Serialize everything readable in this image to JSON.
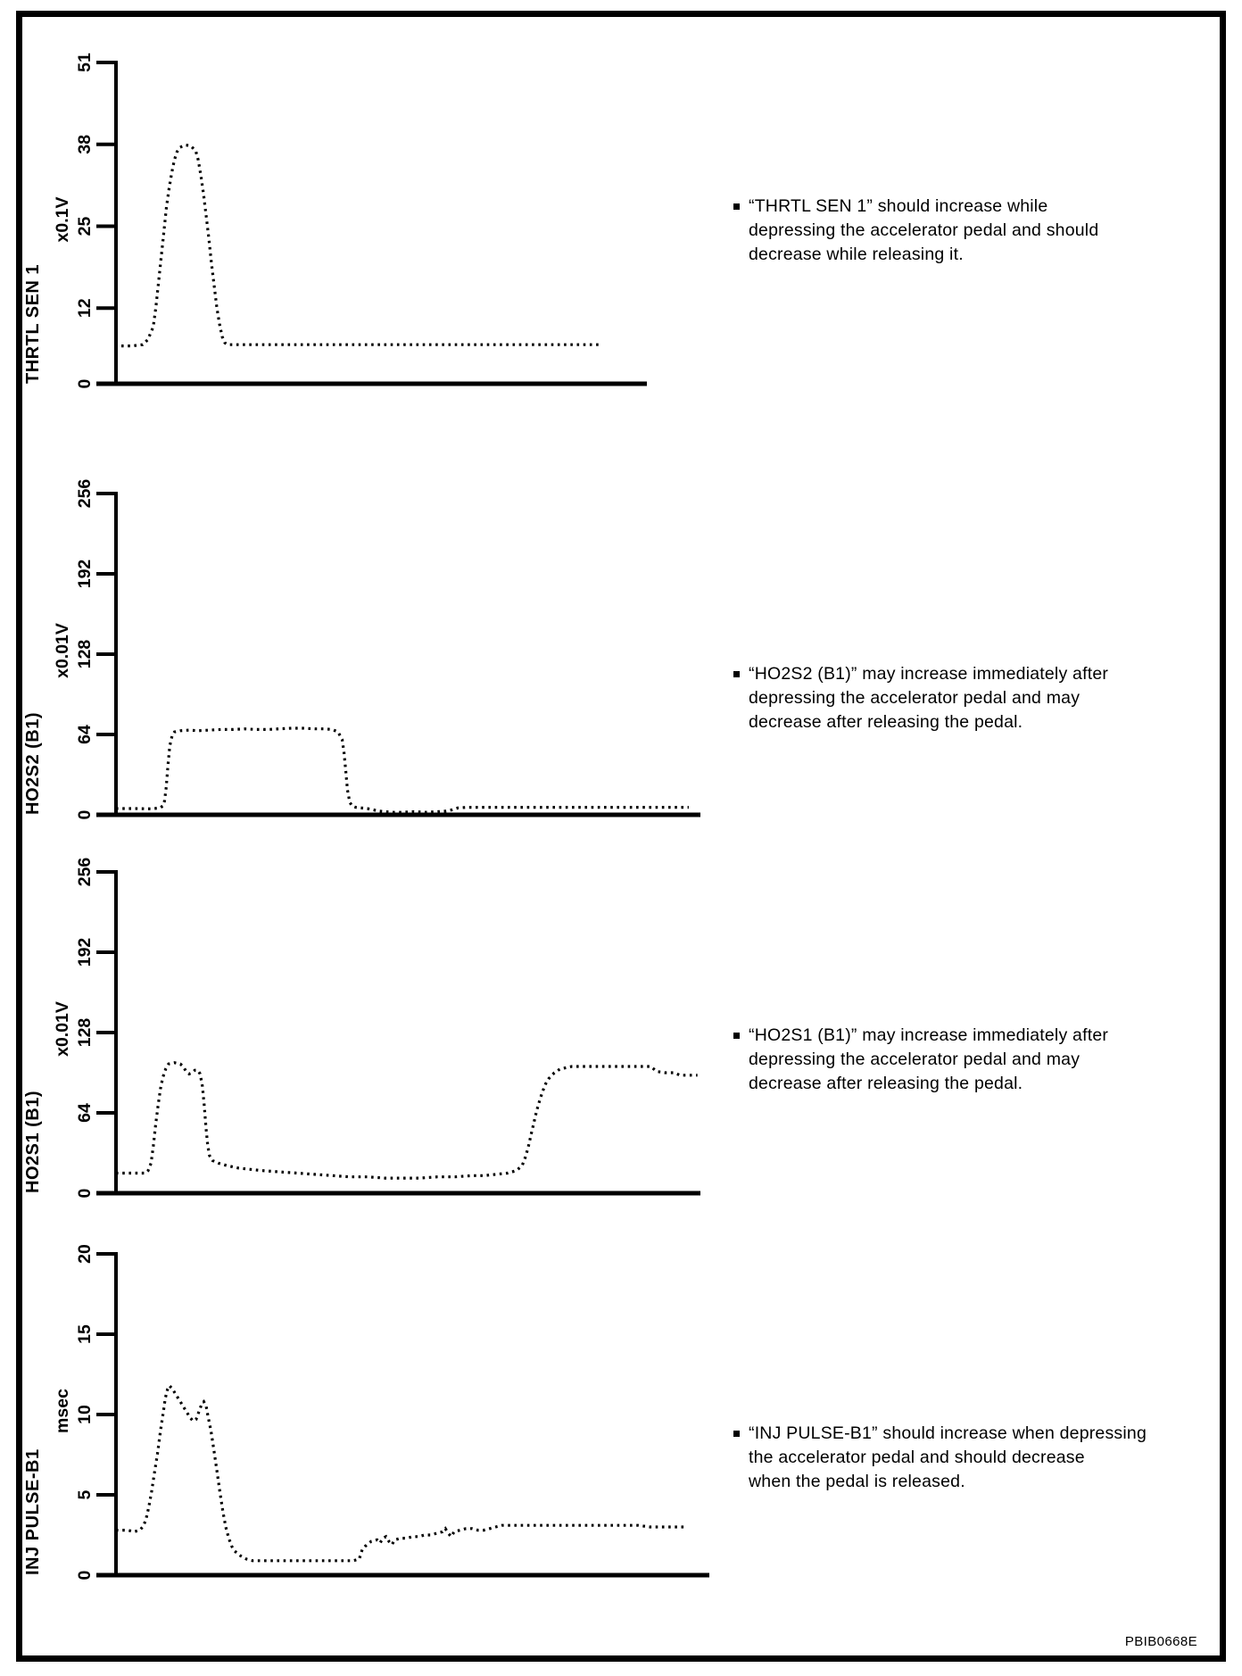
{
  "page": {
    "figure_code": "PBIB0668E"
  },
  "chart_data": [
    {
      "type": "line",
      "style": "dotted",
      "signal": "THRTL SEN 1",
      "unit": "x0.1V",
      "ylabel": "THRTL SEN 1",
      "ylim": [
        0,
        51
      ],
      "yticks": [
        0,
        12,
        25,
        38,
        51
      ],
      "grid": false,
      "legend": false,
      "x_percent": [
        1,
        3,
        5,
        6,
        7,
        7.5,
        8,
        8.5,
        9,
        9.5,
        10,
        10.5,
        11,
        11.5,
        12,
        13,
        14,
        15,
        15.5,
        16,
        16.5,
        17,
        17.5,
        18,
        18.5,
        19,
        19.5,
        20,
        20.5,
        21,
        24,
        30,
        40,
        50,
        60,
        70,
        80,
        91
      ],
      "values": [
        6,
        6,
        6.2,
        7,
        9,
        12,
        16,
        20,
        24,
        28,
        31,
        33.5,
        35.5,
        36.8,
        37.5,
        37.9,
        37.8,
        37,
        35.5,
        33,
        30,
        26.5,
        23,
        19,
        15.5,
        12,
        9.5,
        7.5,
        6.5,
        6.2,
        6.2,
        6.2,
        6.2,
        6.2,
        6.2,
        6.2,
        6.2,
        6.2
      ],
      "note": "“THRTL SEN 1” should increase while\ndepressing the accelerator pedal and should\ndecrease while releasing it."
    },
    {
      "type": "line",
      "style": "dotted",
      "signal": "HO2S2 (B1)",
      "unit": "x0.01V",
      "ylabel": "HO2S2 (B1)",
      "ylim": [
        0,
        256
      ],
      "yticks": [
        0,
        64,
        128,
        192,
        256
      ],
      "grid": false,
      "legend": false,
      "x_percent": [
        0,
        3,
        6,
        7.5,
        8,
        8.3,
        8.6,
        8.9,
        9.2,
        9.6,
        10,
        11,
        12.5,
        14,
        16,
        18,
        20,
        22,
        24,
        26,
        28,
        30,
        32,
        34,
        35.5,
        37,
        38,
        38.7,
        39,
        39.3,
        39.6,
        40,
        40.4,
        41,
        42,
        43,
        44,
        45,
        46,
        47.5,
        49,
        51,
        53,
        55,
        56.5,
        57.5,
        58.5,
        60,
        63,
        66,
        69,
        72,
        75,
        78,
        81,
        84,
        87,
        90,
        93,
        96,
        98
      ],
      "values": [
        5,
        5,
        4.8,
        5.5,
        7,
        11,
        22,
        40,
        55,
        63,
        66,
        67,
        67.5,
        67,
        67.5,
        68,
        68,
        68.5,
        68,
        68,
        68.5,
        69,
        69,
        68.5,
        68.5,
        68,
        66,
        60,
        50,
        36,
        20,
        10,
        7,
        6,
        5.5,
        5,
        4,
        3,
        2.5,
        2,
        2,
        2.5,
        2,
        2.5,
        3,
        4,
        5.5,
        6,
        6,
        6,
        6,
        6,
        6,
        6,
        6,
        6,
        6,
        6,
        6,
        6,
        6
      ],
      "note": "“HO2S2 (B1)” may increase immediately after\ndepressing the accelerator pedal and may\ndecrease after releasing the pedal."
    },
    {
      "type": "line",
      "style": "dotted",
      "signal": "HO2S1 (B1)",
      "unit": "x0.01V",
      "ylabel": "HO2S1 (B1)",
      "ylim": [
        0,
        256
      ],
      "yticks": [
        0,
        64,
        128,
        192,
        256
      ],
      "grid": false,
      "legend": false,
      "x_percent": [
        0,
        2,
        4,
        5,
        5.5,
        6,
        6.4,
        6.8,
        7.2,
        7.6,
        8,
        8.5,
        9,
        10,
        11,
        11.5,
        12,
        12.5,
        13,
        13.5,
        14,
        14.4,
        14.8,
        15.1,
        15.4,
        15.7,
        16,
        16.5,
        17.5,
        19,
        21,
        23,
        25,
        28,
        31,
        34,
        37,
        40,
        43,
        46,
        49,
        52,
        55,
        58,
        61,
        63,
        65,
        67,
        68.5,
        69.5,
        70,
        70.5,
        71,
        71.5,
        72,
        72.5,
        73,
        73.5,
        74,
        75,
        76,
        77,
        78,
        80,
        82,
        84,
        86,
        88,
        90,
        91.5,
        92.5,
        94,
        95.5,
        96.5,
        98,
        99.5
      ],
      "values": [
        16,
        16,
        16,
        16,
        18,
        24,
        38,
        55,
        70,
        83,
        92,
        99,
        103,
        104,
        103,
        101,
        97,
        95,
        96,
        98,
        98,
        95,
        85,
        70,
        52,
        38,
        30,
        26,
        24,
        22,
        20,
        19,
        18,
        17,
        16,
        15,
        14,
        13,
        13,
        12,
        12,
        12,
        13,
        13,
        14,
        14,
        15,
        16,
        18,
        22,
        28,
        36,
        46,
        56,
        66,
        74,
        81,
        87,
        91,
        96,
        99,
        100,
        101,
        101,
        101,
        101,
        101,
        101,
        101,
        101,
        97,
        96,
        96,
        94,
        94,
        94
      ],
      "note": "“HO2S1 (B1)” may increase immediately after\ndepressing the accelerator pedal and may\ndecrease after releasing the pedal."
    },
    {
      "type": "line",
      "style": "dotted",
      "signal": "INJ PULSE-B1",
      "unit": "msec",
      "ylabel": "INJ PULSE-B1",
      "ylim": [
        0,
        20
      ],
      "yticks": [
        0,
        5,
        10,
        15,
        20
      ],
      "grid": false,
      "legend": false,
      "x_percent": [
        0,
        2,
        3,
        4,
        4.5,
        5,
        5.5,
        6,
        6.5,
        7,
        7.5,
        8,
        8.3,
        8.7,
        9,
        9.5,
        10,
        10.5,
        11,
        11.5,
        12,
        12.5,
        13,
        13.5,
        14,
        14.5,
        14.8,
        15.2,
        15.5,
        16,
        16.5,
        17,
        17.5,
        18,
        18.5,
        19,
        19.5,
        20,
        21,
        22,
        23,
        25,
        28,
        31,
        34,
        37,
        40,
        41,
        41.5,
        42,
        43,
        44,
        44.5,
        45,
        45.5,
        46,
        46.5,
        47,
        48,
        49,
        50,
        51,
        52,
        53,
        54,
        55,
        55.5,
        56,
        56.5,
        57,
        58,
        59,
        60,
        61,
        62,
        63,
        64,
        65,
        66,
        68,
        70,
        72,
        74,
        76,
        78,
        80,
        82,
        84,
        86,
        88,
        90,
        92,
        94,
        96
      ],
      "values": [
        2.8,
        2.8,
        2.7,
        2.8,
        3,
        3.4,
        4.2,
        5.2,
        6.4,
        7.6,
        9,
        10.2,
        11,
        11.6,
        11.8,
        11.6,
        11.3,
        11,
        10.7,
        10.4,
        10.1,
        9.8,
        9.6,
        9.7,
        10.2,
        10.7,
        10.8,
        10.5,
        9.9,
        9,
        7.8,
        6.5,
        5.2,
        4,
        3,
        2.3,
        1.8,
        1.5,
        1.2,
        1,
        0.9,
        0.9,
        0.9,
        0.9,
        0.9,
        0.9,
        0.9,
        1,
        1.6,
        1.8,
        2.1,
        2.2,
        2,
        2.3,
        2.4,
        2.1,
        1.9,
        2.2,
        2.3,
        2.3,
        2.4,
        2.4,
        2.5,
        2.5,
        2.6,
        2.7,
        2.9,
        2.6,
        2.4,
        2.7,
        2.8,
        2.9,
        2.9,
        2.8,
        2.8,
        2.9,
        3,
        3.1,
        3.1,
        3.1,
        3.1,
        3.1,
        3.1,
        3.1,
        3.1,
        3.1,
        3.1,
        3.1,
        3.1,
        3.1,
        3,
        3,
        3,
        3
      ],
      "note": "“INJ PULSE-B1” should increase when depressing\nthe accelerator pedal and should decrease\nwhen the pedal is released."
    }
  ]
}
